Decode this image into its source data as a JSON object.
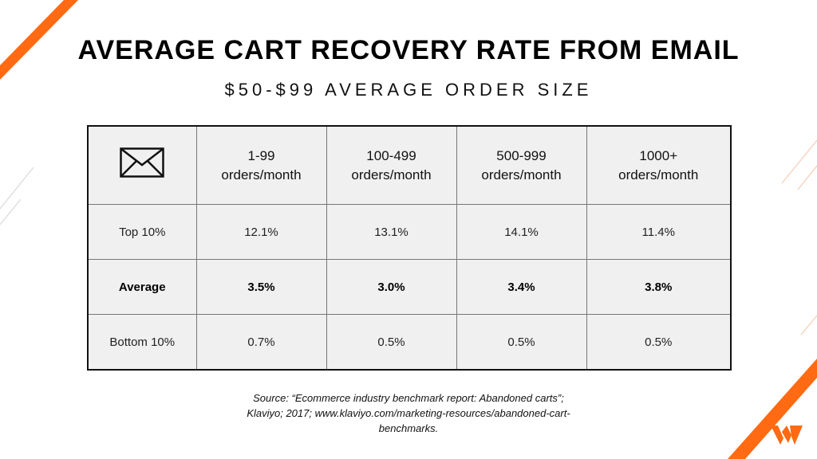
{
  "title": "AVERAGE CART RECOVERY RATE FROM EMAIL",
  "subtitle": "$50-$99 AVERAGE ORDER SIZE",
  "table": {
    "corner_icon": "envelope-icon",
    "columns": [
      {
        "line1": "1-99",
        "line2": "orders/month"
      },
      {
        "line1": "100-499",
        "line2": "orders/month"
      },
      {
        "line1": "500-999",
        "line2": "orders/month"
      },
      {
        "line1": "1000+",
        "line2": "orders/month"
      }
    ],
    "rows": [
      {
        "label": "Top 10%",
        "values": [
          "12.1%",
          "13.1%",
          "14.1%",
          "11.4%"
        ]
      },
      {
        "label": "Average",
        "values": [
          "3.5%",
          "3.0%",
          "3.4%",
          "3.8%"
        ]
      },
      {
        "label": "Bottom 10%",
        "values": [
          "0.7%",
          "0.5%",
          "0.5%",
          "0.5%"
        ]
      }
    ]
  },
  "source": {
    "line1": "Source: “Ecommerce industry benchmark report: Abandoned carts”;",
    "line2": "Klaviyo; 2017; www.klaviyo.com/marketing-resources/abandoned-cart-",
    "line3": "benchmarks."
  },
  "colors": {
    "accent": "#ff6a13",
    "table_fill": "#f0f0f0",
    "border": "#111111"
  },
  "logo": "brand-logo-icon"
}
